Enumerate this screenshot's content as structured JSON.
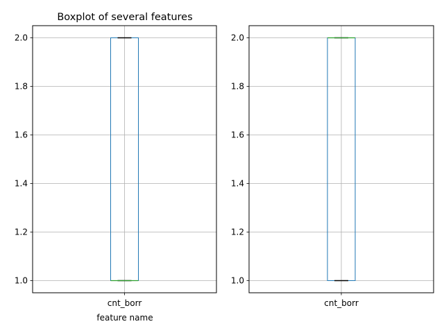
{
  "chart_data": [
    {
      "type": "box",
      "title": "Boxplot of several features",
      "xlabel": "feature name",
      "ylabel": "",
      "categories": [
        "cnt_borr"
      ],
      "ylim": [
        0.95,
        2.05
      ],
      "yticks": [
        "1.0",
        "1.2",
        "1.4",
        "1.6",
        "1.8",
        "2.0"
      ],
      "grid": true,
      "boxes": [
        {
          "name": "cnt_borr",
          "min": 1.0,
          "q1": 1.0,
          "median": 1.0,
          "q3": 2.0,
          "max": 2.0
        }
      ],
      "colors": {
        "box": "#1f77b4",
        "median": "#2ca02c",
        "whisker": "#000000",
        "grid": "#b0b0b0"
      }
    },
    {
      "type": "box",
      "title": "",
      "xlabel": "",
      "ylabel": "",
      "categories": [
        "cnt_borr"
      ],
      "ylim": [
        0.95,
        2.05
      ],
      "yticks": [
        "1.0",
        "1.2",
        "1.4",
        "1.6",
        "1.8",
        "2.0"
      ],
      "grid": true,
      "boxes": [
        {
          "name": "cnt_borr",
          "min": 1.0,
          "q1": 1.0,
          "median": 2.0,
          "q3": 2.0,
          "max": 2.0
        }
      ],
      "colors": {
        "box": "#1f77b4",
        "median": "#2ca02c",
        "whisker": "#000000",
        "grid": "#b0b0b0"
      }
    }
  ]
}
